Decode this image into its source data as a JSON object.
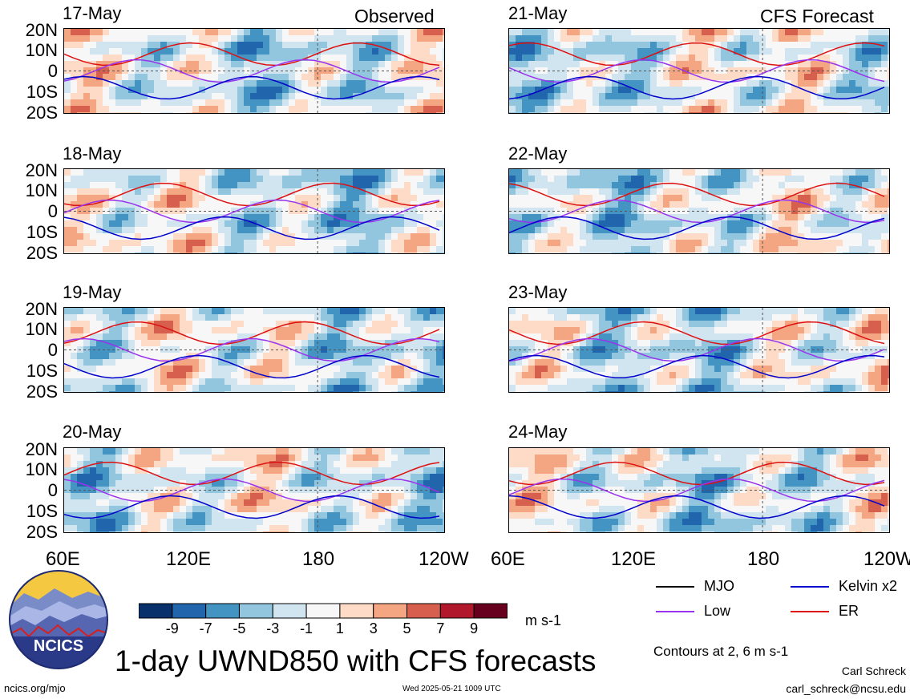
{
  "header": {
    "left": "Observed",
    "right": "CFS Forecast"
  },
  "panels": {
    "observed": [
      "17-May",
      "18-May",
      "19-May",
      "20-May"
    ],
    "forecast": [
      "21-May",
      "22-May",
      "23-May",
      "24-May"
    ]
  },
  "lat_labels": [
    "20N",
    "10N",
    "0",
    "10S",
    "20S"
  ],
  "lon_labels": [
    "60E",
    "120E",
    "180",
    "120W"
  ],
  "colorbar": {
    "ticks": [
      "-9",
      "-7",
      "-5",
      "-3",
      "-1",
      "1",
      "3",
      "5",
      "7",
      "9"
    ],
    "colors": [
      "#08306b",
      "#2166ac",
      "#4393c3",
      "#92c5de",
      "#d1e5f0",
      "#f7f7f7",
      "#fddbc7",
      "#f4a582",
      "#d6604d",
      "#b2182b",
      "#67001f"
    ],
    "units": "m s-1"
  },
  "legend": [
    {
      "label": "MJO",
      "color": "#000000"
    },
    {
      "label": "Kelvin x2",
      "color": "#0000cc"
    },
    {
      "label": "Low",
      "color": "#9933ee"
    },
    {
      "label": "ER",
      "color": "#dd1111"
    }
  ],
  "contour_note": "Contours at 2, 6 m s-1",
  "title": "1-day UWND850 with CFS forecasts",
  "footer": {
    "logo_text": "NCICS",
    "left_url": "ncics.org/mjo",
    "timestamp": "Wed 2025-05-21 1009 UTC",
    "author": "Carl Schreck",
    "email": "carl_schreck@ncsu.edu"
  },
  "chart_data": {
    "type": "heatmap",
    "variable": "UWND850",
    "units": "m s-1",
    "x_axis": {
      "ticks": [
        "60E",
        "120E",
        "180",
        "120W"
      ],
      "range": [
        "60E",
        "120W"
      ]
    },
    "y_axis": {
      "ticks": [
        "20N",
        "10N",
        "0",
        "10S",
        "20S"
      ],
      "range": [
        "20S",
        "20N"
      ]
    },
    "contour_levels": [
      2,
      6
    ],
    "series": [
      {
        "name": "MJO",
        "color": "#000000"
      },
      {
        "name": "Kelvin x2",
        "color": "#0000cc"
      },
      {
        "name": "Low",
        "color": "#9933ee"
      },
      {
        "name": "ER",
        "color": "#dd1111"
      }
    ],
    "panels": [
      "17-May",
      "18-May",
      "19-May",
      "20-May",
      "21-May",
      "22-May",
      "23-May",
      "24-May"
    ]
  }
}
